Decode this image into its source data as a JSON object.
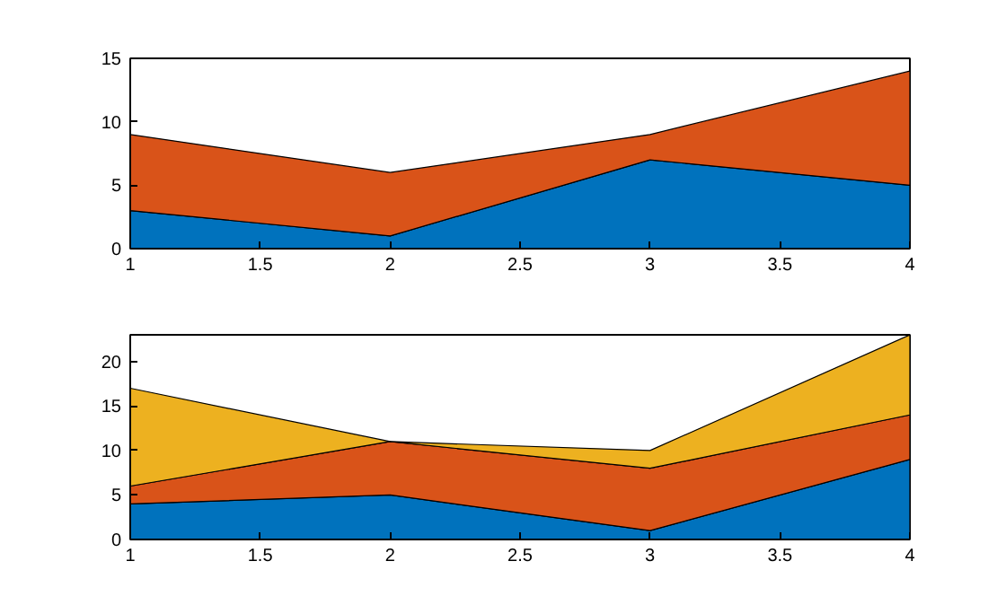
{
  "chart_data": [
    {
      "type": "area",
      "stacked": true,
      "x": [
        1,
        2,
        3,
        4
      ],
      "xlim": [
        1,
        4
      ],
      "ylim": [
        0,
        15
      ],
      "xticks": [
        1,
        1.5,
        2,
        2.5,
        3,
        3.5,
        4
      ],
      "yticks": [
        0,
        5,
        10,
        15
      ],
      "grid": false,
      "series": [
        {
          "color": "#0072bd",
          "values": [
            3,
            1,
            7,
            5
          ]
        },
        {
          "color": "#d95319",
          "values": [
            6,
            5,
            2,
            9
          ]
        }
      ]
    },
    {
      "type": "area",
      "stacked": true,
      "x": [
        1,
        2,
        3,
        4
      ],
      "xlim": [
        1,
        4
      ],
      "ylim": [
        0,
        23
      ],
      "xticks": [
        1,
        1.5,
        2,
        2.5,
        3,
        3.5,
        4
      ],
      "yticks": [
        0,
        5,
        10,
        15,
        20
      ],
      "grid": false,
      "series": [
        {
          "color": "#0072bd",
          "values": [
            4,
            5,
            1,
            9
          ]
        },
        {
          "color": "#d95319",
          "values": [
            2,
            6,
            7,
            5
          ]
        },
        {
          "color": "#edb120",
          "values": [
            11,
            0,
            2,
            9
          ]
        }
      ]
    }
  ]
}
